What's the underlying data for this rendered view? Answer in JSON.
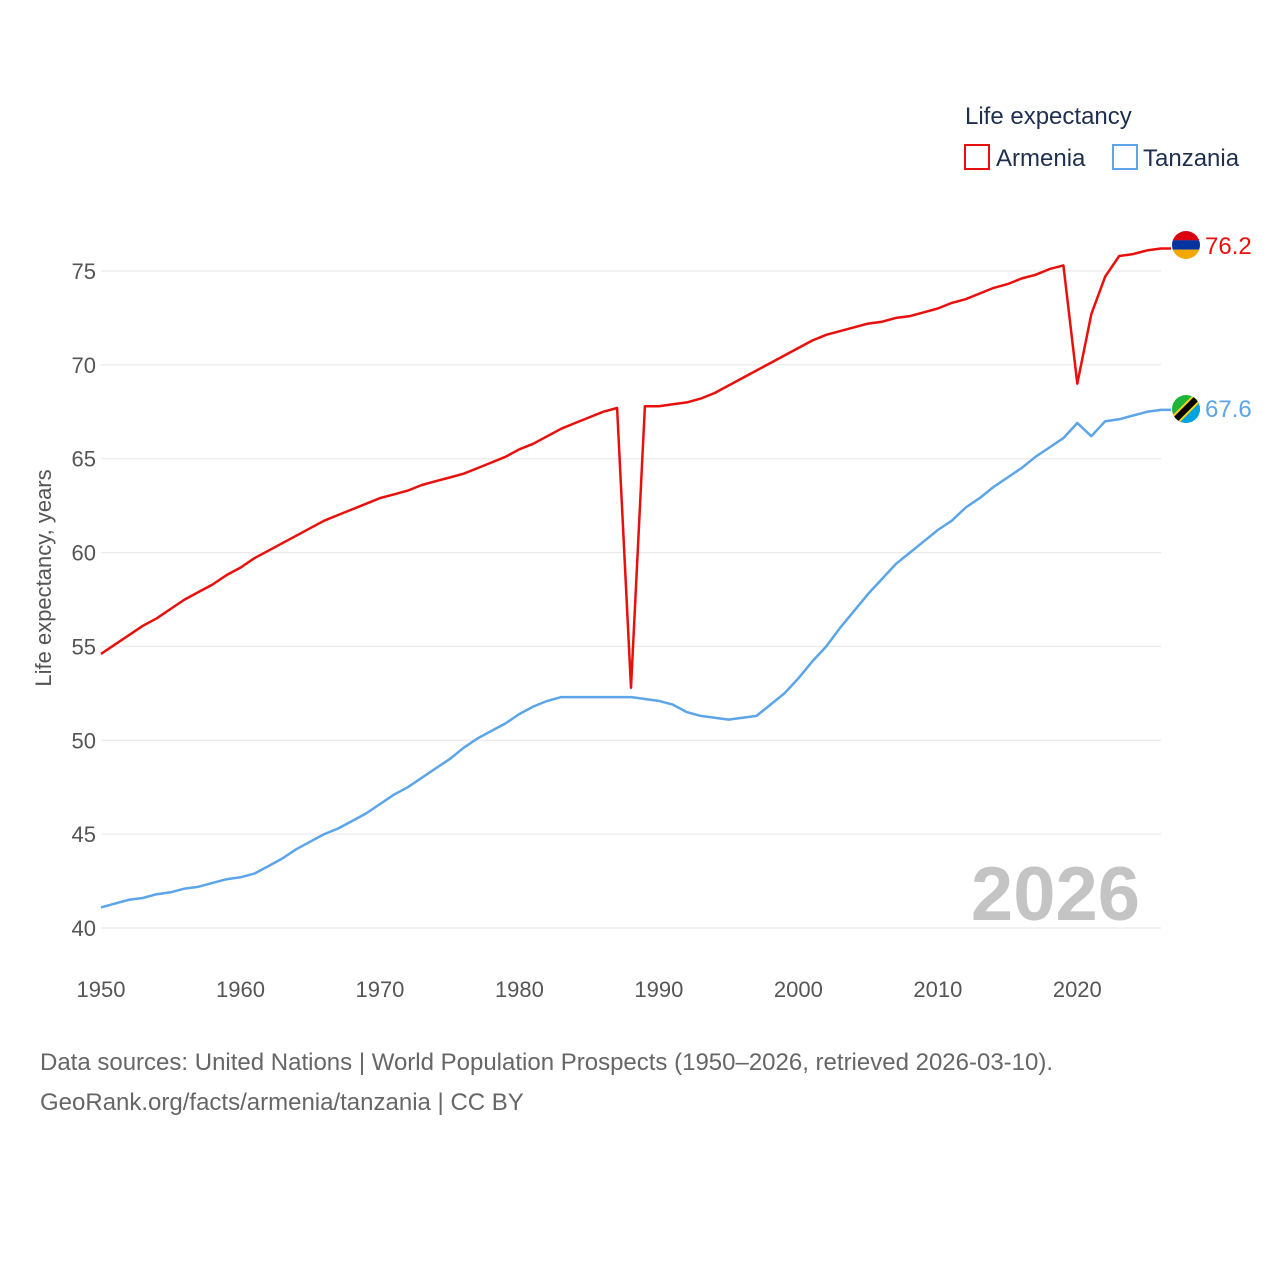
{
  "chart_data": {
    "type": "line",
    "legend_title": "Life expectancy",
    "legend_position": "top-right",
    "ylabel": "Life expectancy, years",
    "xlim": [
      1950,
      2026
    ],
    "ylim": [
      40,
      78
    ],
    "x_ticks": [
      1950,
      1960,
      1970,
      1980,
      1990,
      2000,
      2010,
      2020
    ],
    "y_ticks": [
      40,
      45,
      50,
      55,
      60,
      65,
      70,
      75
    ],
    "current_year_label": "2026",
    "series": [
      {
        "name": "Armenia",
        "color": "#e8100c",
        "end_label": "76.2",
        "flag_icon": "armenia-flag-icon",
        "x": [
          1950,
          1951,
          1952,
          1953,
          1954,
          1955,
          1956,
          1957,
          1958,
          1959,
          1960,
          1961,
          1962,
          1963,
          1964,
          1965,
          1966,
          1967,
          1968,
          1969,
          1970,
          1971,
          1972,
          1973,
          1974,
          1975,
          1976,
          1977,
          1978,
          1979,
          1980,
          1981,
          1982,
          1983,
          1984,
          1985,
          1986,
          1987,
          1988,
          1989,
          1990,
          1991,
          1992,
          1993,
          1994,
          1995,
          1996,
          1997,
          1998,
          1999,
          2000,
          2001,
          2002,
          2003,
          2004,
          2005,
          2006,
          2007,
          2008,
          2009,
          2010,
          2011,
          2012,
          2013,
          2014,
          2015,
          2016,
          2017,
          2018,
          2019,
          2020,
          2021,
          2022,
          2023,
          2024,
          2025,
          2026
        ],
        "values": [
          54.6,
          55.1,
          55.6,
          56.1,
          56.5,
          57.0,
          57.5,
          57.9,
          58.3,
          58.8,
          59.2,
          59.7,
          60.1,
          60.5,
          60.9,
          61.3,
          61.7,
          62.0,
          62.3,
          62.6,
          62.9,
          63.1,
          63.3,
          63.6,
          63.8,
          64.0,
          64.2,
          64.5,
          64.8,
          65.1,
          65.5,
          65.8,
          66.2,
          66.6,
          66.9,
          67.2,
          67.5,
          67.7,
          52.8,
          67.8,
          67.8,
          67.9,
          68.0,
          68.2,
          68.5,
          68.9,
          69.3,
          69.7,
          70.1,
          70.5,
          70.9,
          71.3,
          71.6,
          71.8,
          72.0,
          72.2,
          72.3,
          72.5,
          72.6,
          72.8,
          73.0,
          73.3,
          73.5,
          73.8,
          74.1,
          74.3,
          74.6,
          74.8,
          75.1,
          75.3,
          69.0,
          72.7,
          74.7,
          75.8,
          75.9,
          76.1,
          76.2
        ]
      },
      {
        "name": "Tanzania",
        "color": "#5ba5e8",
        "end_label": "67.6",
        "flag_icon": "tanzania-flag-icon",
        "x": [
          1950,
          1951,
          1952,
          1953,
          1954,
          1955,
          1956,
          1957,
          1958,
          1959,
          1960,
          1961,
          1962,
          1963,
          1964,
          1965,
          1966,
          1967,
          1968,
          1969,
          1970,
          1971,
          1972,
          1973,
          1974,
          1975,
          1976,
          1977,
          1978,
          1979,
          1980,
          1981,
          1982,
          1983,
          1984,
          1985,
          1986,
          1987,
          1988,
          1989,
          1990,
          1991,
          1992,
          1993,
          1994,
          1995,
          1996,
          1997,
          1998,
          1999,
          2000,
          2001,
          2002,
          2003,
          2004,
          2005,
          2006,
          2007,
          2008,
          2009,
          2010,
          2011,
          2012,
          2013,
          2014,
          2015,
          2016,
          2017,
          2018,
          2019,
          2020,
          2021,
          2022,
          2023,
          2024,
          2025,
          2026
        ],
        "values": [
          41.1,
          41.3,
          41.5,
          41.6,
          41.8,
          41.9,
          42.1,
          42.2,
          42.4,
          42.6,
          42.7,
          42.9,
          43.3,
          43.7,
          44.2,
          44.6,
          45.0,
          45.3,
          45.7,
          46.1,
          46.6,
          47.1,
          47.5,
          48.0,
          48.5,
          49.0,
          49.6,
          50.1,
          50.5,
          50.9,
          51.4,
          51.8,
          52.1,
          52.3,
          52.3,
          52.3,
          52.3,
          52.3,
          52.3,
          52.2,
          52.1,
          51.9,
          51.5,
          51.3,
          51.2,
          51.1,
          51.2,
          51.3,
          51.9,
          52.5,
          53.3,
          54.2,
          55.0,
          56.0,
          56.9,
          57.8,
          58.6,
          59.4,
          60.0,
          60.6,
          61.2,
          61.7,
          62.4,
          62.9,
          63.5,
          64.0,
          64.5,
          65.1,
          65.6,
          66.1,
          66.9,
          66.2,
          67.0,
          67.1,
          67.3,
          67.5,
          67.6
        ]
      }
    ]
  },
  "source": {
    "line1": "Data sources: United Nations | World Population Prospects (1950–2026, retrieved 2026-03-10).",
    "line2": "GeoRank.org/facts/armenia/tanzania | CC BY"
  }
}
